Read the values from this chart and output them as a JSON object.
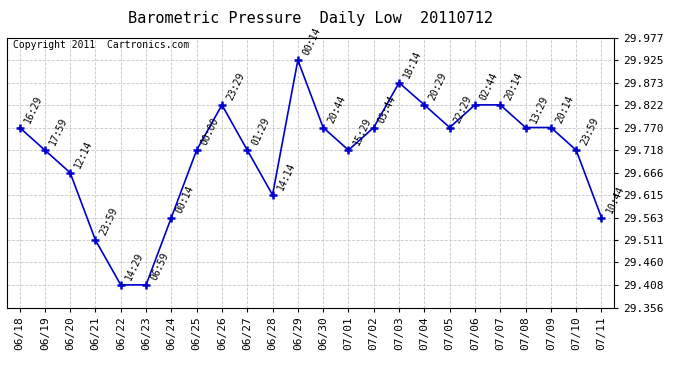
{
  "title": "Barometric Pressure  Daily Low  20110712",
  "copyright": "Copyright 2011  Cartronics.com",
  "x_labels": [
    "06/18",
    "06/19",
    "06/20",
    "06/21",
    "06/22",
    "06/23",
    "06/24",
    "06/25",
    "06/26",
    "06/27",
    "06/28",
    "06/29",
    "06/30",
    "07/01",
    "07/02",
    "07/03",
    "07/04",
    "07/05",
    "07/06",
    "07/07",
    "07/08",
    "07/09",
    "07/10",
    "07/11"
  ],
  "y_values": [
    29.77,
    29.718,
    29.666,
    29.511,
    29.408,
    29.408,
    29.563,
    29.718,
    29.822,
    29.718,
    29.615,
    29.925,
    29.77,
    29.718,
    29.77,
    29.873,
    29.822,
    29.77,
    29.822,
    29.822,
    29.77,
    29.77,
    29.718,
    29.563
  ],
  "point_labels": [
    "16:29",
    "17:59",
    "12:14",
    "23:59",
    "14:29",
    "06:59",
    "00:14",
    "00:00",
    "23:29",
    "01:29",
    "14:14",
    "00:14",
    "20:44",
    "15:29",
    "03:44",
    "18:14",
    "20:29",
    "22:29",
    "02:44",
    "20:14",
    "13:29",
    "20:14",
    "23:59",
    "10:44"
  ],
  "y_ticks": [
    29.356,
    29.408,
    29.46,
    29.511,
    29.563,
    29.615,
    29.666,
    29.718,
    29.77,
    29.822,
    29.873,
    29.925,
    29.977
  ],
  "y_min": 29.356,
  "y_max": 29.977,
  "line_color": "#0000cc",
  "marker_color": "#0000cc",
  "bg_color": "#ffffff",
  "grid_color": "#c8c8c8",
  "title_fontsize": 11,
  "copyright_fontsize": 7,
  "tick_fontsize": 8,
  "label_fontsize": 7
}
